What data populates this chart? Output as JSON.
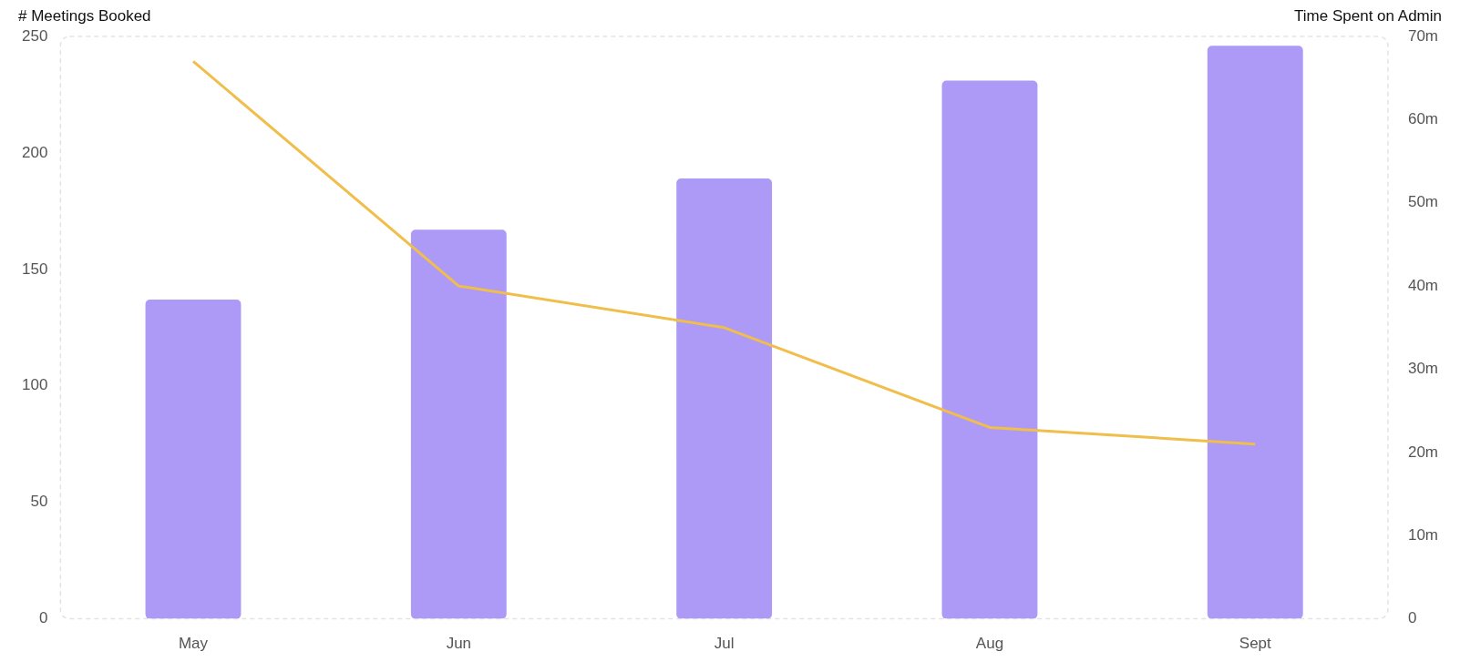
{
  "chart_data": {
    "type": "bar",
    "ylabel": "# Meetings Booked",
    "y2label": "Time Spent on Admin",
    "categories": [
      "May",
      "Jun",
      "Jul",
      "Aug",
      "Sept"
    ],
    "series": [
      {
        "color": "#ad9af7",
        "values": [
          137,
          167,
          189,
          231,
          246
        ]
      },
      {
        "type": "line",
        "axis": "y2",
        "color": "#f0be4a",
        "values": [
          67,
          40,
          35,
          23,
          21
        ]
      }
    ],
    "ylim": [
      0,
      250
    ],
    "yticks": [
      0,
      50,
      100,
      150,
      200,
      250
    ],
    "y2lim": [
      0,
      70
    ],
    "y2ticks": [
      {
        "value": 0,
        "label": "0"
      },
      {
        "value": 10,
        "label": "10m"
      },
      {
        "value": 20,
        "label": "20m"
      },
      {
        "value": 30,
        "label": "30m"
      },
      {
        "value": 40,
        "label": "40m"
      },
      {
        "value": 50,
        "label": "50m"
      },
      {
        "value": 60,
        "label": "60m"
      },
      {
        "value": 70,
        "label": "70m"
      }
    ],
    "grid": false,
    "legend": false,
    "marker": "none",
    "line_style": "solid"
  }
}
